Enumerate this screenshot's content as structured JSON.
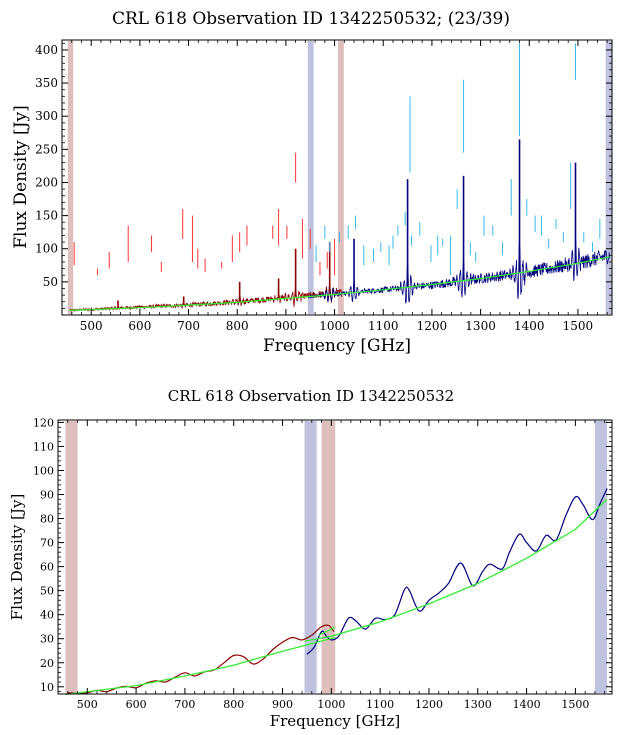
{
  "colors": {
    "pink_band": "#d9b3b3",
    "blue_band": "#b3b7d9",
    "red_spectrum": "#8b0000",
    "navy_spectrum": "#000080",
    "red_lines": "#ff3333",
    "cyan_lines": "#33bbee",
    "fit_green": "#33ee33"
  },
  "chart_data": [
    {
      "type": "line",
      "title": "CRL 618 Observation ID 1342250532; (23/39)",
      "xlabel": "Frequency [GHz]",
      "ylabel": "Flux Density [Jy]",
      "xlim": [
        440,
        1570
      ],
      "ylim": [
        0,
        415
      ],
      "xticks": [
        500,
        600,
        700,
        800,
        900,
        1000,
        1100,
        1200,
        1300,
        1400,
        1500
      ],
      "yticks": [
        50,
        100,
        150,
        200,
        250,
        300,
        350,
        400
      ],
      "grid": false,
      "bands": [
        {
          "from": 452,
          "to": 463,
          "color": "pink"
        },
        {
          "from": 945,
          "to": 957,
          "color": "blue"
        },
        {
          "from": 1007,
          "to": 1019,
          "color": "pink"
        },
        {
          "from": 1557,
          "to": 1570,
          "color": "blue"
        }
      ],
      "series": [
        {
          "role": "SLW spectrum",
          "color": "dark-red",
          "x_range": [
            455,
            1015
          ],
          "baseline": [
            [
              455,
              7
            ],
            [
              600,
              12
            ],
            [
              700,
              15
            ],
            [
              800,
              20
            ],
            [
              900,
              26
            ],
            [
              1000,
              33
            ],
            [
              1015,
              34
            ]
          ]
        },
        {
          "role": "SSW spectrum",
          "color": "navy",
          "x_range": [
            945,
            1565
          ],
          "baseline": [
            [
              945,
              28
            ],
            [
              1000,
              32
            ],
            [
              1100,
              38
            ],
            [
              1200,
              45
            ],
            [
              1300,
              55
            ],
            [
              1400,
              65
            ],
            [
              1500,
              78
            ],
            [
              1565,
              90
            ]
          ]
        },
        {
          "role": "continuum fit",
          "color": "green",
          "points": [
            [
              455,
              7
            ],
            [
              600,
              11
            ],
            [
              700,
              15
            ],
            [
              800,
              19
            ],
            [
              900,
              25
            ],
            [
              1000,
              31
            ],
            [
              1100,
              38
            ],
            [
              1200,
              46
            ],
            [
              1300,
              55
            ],
            [
              1400,
              66
            ],
            [
              1500,
              78
            ],
            [
              1565,
              88
            ]
          ]
        }
      ],
      "peaks": [
        {
          "x": 555,
          "y": 22
        },
        {
          "x": 690,
          "y": 28
        },
        {
          "x": 805,
          "y": 50
        },
        {
          "x": 885,
          "y": 55
        },
        {
          "x": 920,
          "y": 100
        },
        {
          "x": 990,
          "y": 110
        },
        {
          "x": 1040,
          "y": 115
        },
        {
          "x": 1150,
          "y": 205
        },
        {
          "x": 1265,
          "y": 210
        },
        {
          "x": 1380,
          "y": 265
        },
        {
          "x": 1495,
          "y": 230
        }
      ],
      "red_marker_lines": [
        [
          465,
          75,
          110
        ],
        [
          513,
          60,
          70
        ],
        [
          537,
          70,
          95
        ],
        [
          576,
          80,
          135
        ],
        [
          624,
          95,
          120
        ],
        [
          644,
          65,
          80
        ],
        [
          688,
          115,
          160
        ],
        [
          708,
          80,
          150
        ],
        [
          719,
          70,
          100
        ],
        [
          734,
          65,
          85
        ],
        [
          768,
          70,
          80
        ],
        [
          790,
          80,
          120
        ],
        [
          805,
          95,
          125
        ],
        [
          820,
          105,
          135
        ],
        [
          873,
          115,
          135
        ],
        [
          885,
          105,
          160
        ],
        [
          902,
          115,
          135
        ],
        [
          920,
          200,
          245
        ],
        [
          934,
          85,
          145
        ],
        [
          950,
          100,
          130
        ],
        [
          970,
          60,
          80
        ],
        [
          985,
          70,
          95
        ],
        [
          1000,
          60,
          115
        ]
      ],
      "cyan_marker_lines": [
        [
          962,
          80,
          105
        ],
        [
          980,
          115,
          135
        ],
        [
          990,
          95,
          110
        ],
        [
          1010,
          110,
          125
        ],
        [
          1028,
          115,
          135
        ],
        [
          1043,
          130,
          150
        ],
        [
          1060,
          75,
          105
        ],
        [
          1080,
          80,
          100
        ],
        [
          1095,
          95,
          110
        ],
        [
          1112,
          75,
          105
        ],
        [
          1120,
          100,
          120
        ],
        [
          1130,
          120,
          135
        ],
        [
          1145,
          135,
          155
        ],
        [
          1158,
          105,
          120
        ],
        [
          1155,
          215,
          330
        ],
        [
          1175,
          120,
          140
        ],
        [
          1198,
          80,
          105
        ],
        [
          1212,
          90,
          120
        ],
        [
          1222,
          105,
          115
        ],
        [
          1238,
          60,
          120
        ],
        [
          1252,
          160,
          190
        ],
        [
          1265,
          245,
          355
        ],
        [
          1279,
          90,
          110
        ],
        [
          1290,
          80,
          95
        ],
        [
          1307,
          120,
          150
        ],
        [
          1325,
          120,
          135
        ],
        [
          1345,
          90,
          110
        ],
        [
          1363,
          150,
          205
        ],
        [
          1380,
          270,
          410
        ],
        [
          1395,
          150,
          175
        ],
        [
          1412,
          125,
          150
        ],
        [
          1425,
          120,
          150
        ],
        [
          1440,
          100,
          115
        ],
        [
          1455,
          130,
          145
        ],
        [
          1470,
          110,
          125
        ],
        [
          1485,
          160,
          230
        ],
        [
          1495,
          355,
          410
        ],
        [
          1512,
          110,
          125
        ],
        [
          1530,
          95,
          110
        ],
        [
          1545,
          115,
          145
        ]
      ]
    },
    {
      "type": "line",
      "title": "CRL 618 Observation ID 1342250532",
      "xlabel": "Frequency [GHz]",
      "ylabel": "Flux Density [Jy]",
      "xlim": [
        440,
        1575
      ],
      "ylim": [
        7,
        121
      ],
      "xticks": [
        500,
        600,
        700,
        800,
        900,
        1000,
        1100,
        1200,
        1300,
        1400,
        1500
      ],
      "yticks": [
        10,
        20,
        30,
        40,
        50,
        60,
        70,
        80,
        90,
        100,
        110,
        120
      ],
      "grid": false,
      "bands": [
        {
          "from": 455,
          "to": 480,
          "color": "pink"
        },
        {
          "from": 945,
          "to": 970,
          "color": "blue"
        },
        {
          "from": 980,
          "to": 1008,
          "color": "pink"
        },
        {
          "from": 1540,
          "to": 1565,
          "color": "blue"
        }
      ],
      "series": [
        {
          "role": "SLW smoothed",
          "color": "dark-red",
          "points": [
            [
              460,
              7.5
            ],
            [
              480,
              7.3
            ],
            [
              500,
              7.5
            ],
            [
              520,
              8.5
            ],
            [
              540,
              8.0
            ],
            [
              560,
              9.5
            ],
            [
              580,
              10.2
            ],
            [
              600,
              9.6
            ],
            [
              620,
              11.5
            ],
            [
              640,
              12.5
            ],
            [
              660,
              12.0
            ],
            [
              680,
              14.0
            ],
            [
              700,
              15.8
            ],
            [
              720,
              14.5
            ],
            [
              740,
              16.2
            ],
            [
              760,
              17.0
            ],
            [
              780,
              20.0
            ],
            [
              800,
              23.0
            ],
            [
              820,
              22.5
            ],
            [
              840,
              19.5
            ],
            [
              860,
              21.5
            ],
            [
              880,
              25.5
            ],
            [
              900,
              28.5
            ],
            [
              920,
              30.5
            ],
            [
              940,
              29.5
            ],
            [
              960,
              31.5
            ],
            [
              980,
              35.0
            ],
            [
              995,
              35.5
            ],
            [
              1005,
              33.0
            ]
          ]
        },
        {
          "role": "SSW smoothed",
          "color": "navy",
          "points": [
            [
              950,
              23.5
            ],
            [
              965,
              26.5
            ],
            [
              980,
              33.0
            ],
            [
              990,
              31.0
            ],
            [
              1000,
              29.5
            ],
            [
              1015,
              31.0
            ],
            [
              1035,
              38.5
            ],
            [
              1050,
              37.5
            ],
            [
              1070,
              34.0
            ],
            [
              1090,
              38.5
            ],
            [
              1110,
              38.0
            ],
            [
              1130,
              40.0
            ],
            [
              1150,
              50.5
            ],
            [
              1160,
              50.0
            ],
            [
              1180,
              41.5
            ],
            [
              1200,
              46.0
            ],
            [
              1220,
              49.0
            ],
            [
              1240,
              53.0
            ],
            [
              1265,
              61.5
            ],
            [
              1290,
              52.0
            ],
            [
              1310,
              58.0
            ],
            [
              1325,
              61.0
            ],
            [
              1350,
              59.0
            ],
            [
              1365,
              66.0
            ],
            [
              1385,
              73.5
            ],
            [
              1400,
              70.0
            ],
            [
              1420,
              66.5
            ],
            [
              1440,
              73.0
            ],
            [
              1460,
              71.0
            ],
            [
              1480,
              81.0
            ],
            [
              1500,
              89.0
            ],
            [
              1515,
              86.0
            ],
            [
              1535,
              79.5
            ],
            [
              1550,
              86.0
            ],
            [
              1565,
              92.5
            ]
          ]
        },
        {
          "role": "continuum fit (SLW)",
          "color": "green",
          "points": [
            [
              455,
              6.8
            ],
            [
              600,
              10.5
            ],
            [
              700,
              14.5
            ],
            [
              800,
              19.0
            ],
            [
              900,
              24.8
            ],
            [
              1008,
              30.5
            ]
          ]
        },
        {
          "role": "continuum fit (SSW)",
          "color": "green",
          "points": [
            [
              945,
              29.0
            ],
            [
              1000,
              31.0
            ],
            [
              1100,
              37.0
            ],
            [
              1200,
              44.5
            ],
            [
              1300,
              53.0
            ],
            [
              1400,
              63.5
            ],
            [
              1500,
              75.5
            ],
            [
              1565,
              88.0
            ]
          ]
        },
        {
          "role": "fit overlap segment",
          "color": "green",
          "points": [
            [
              975,
              31.5
            ],
            [
              1008,
              34.8
            ]
          ]
        }
      ]
    }
  ]
}
